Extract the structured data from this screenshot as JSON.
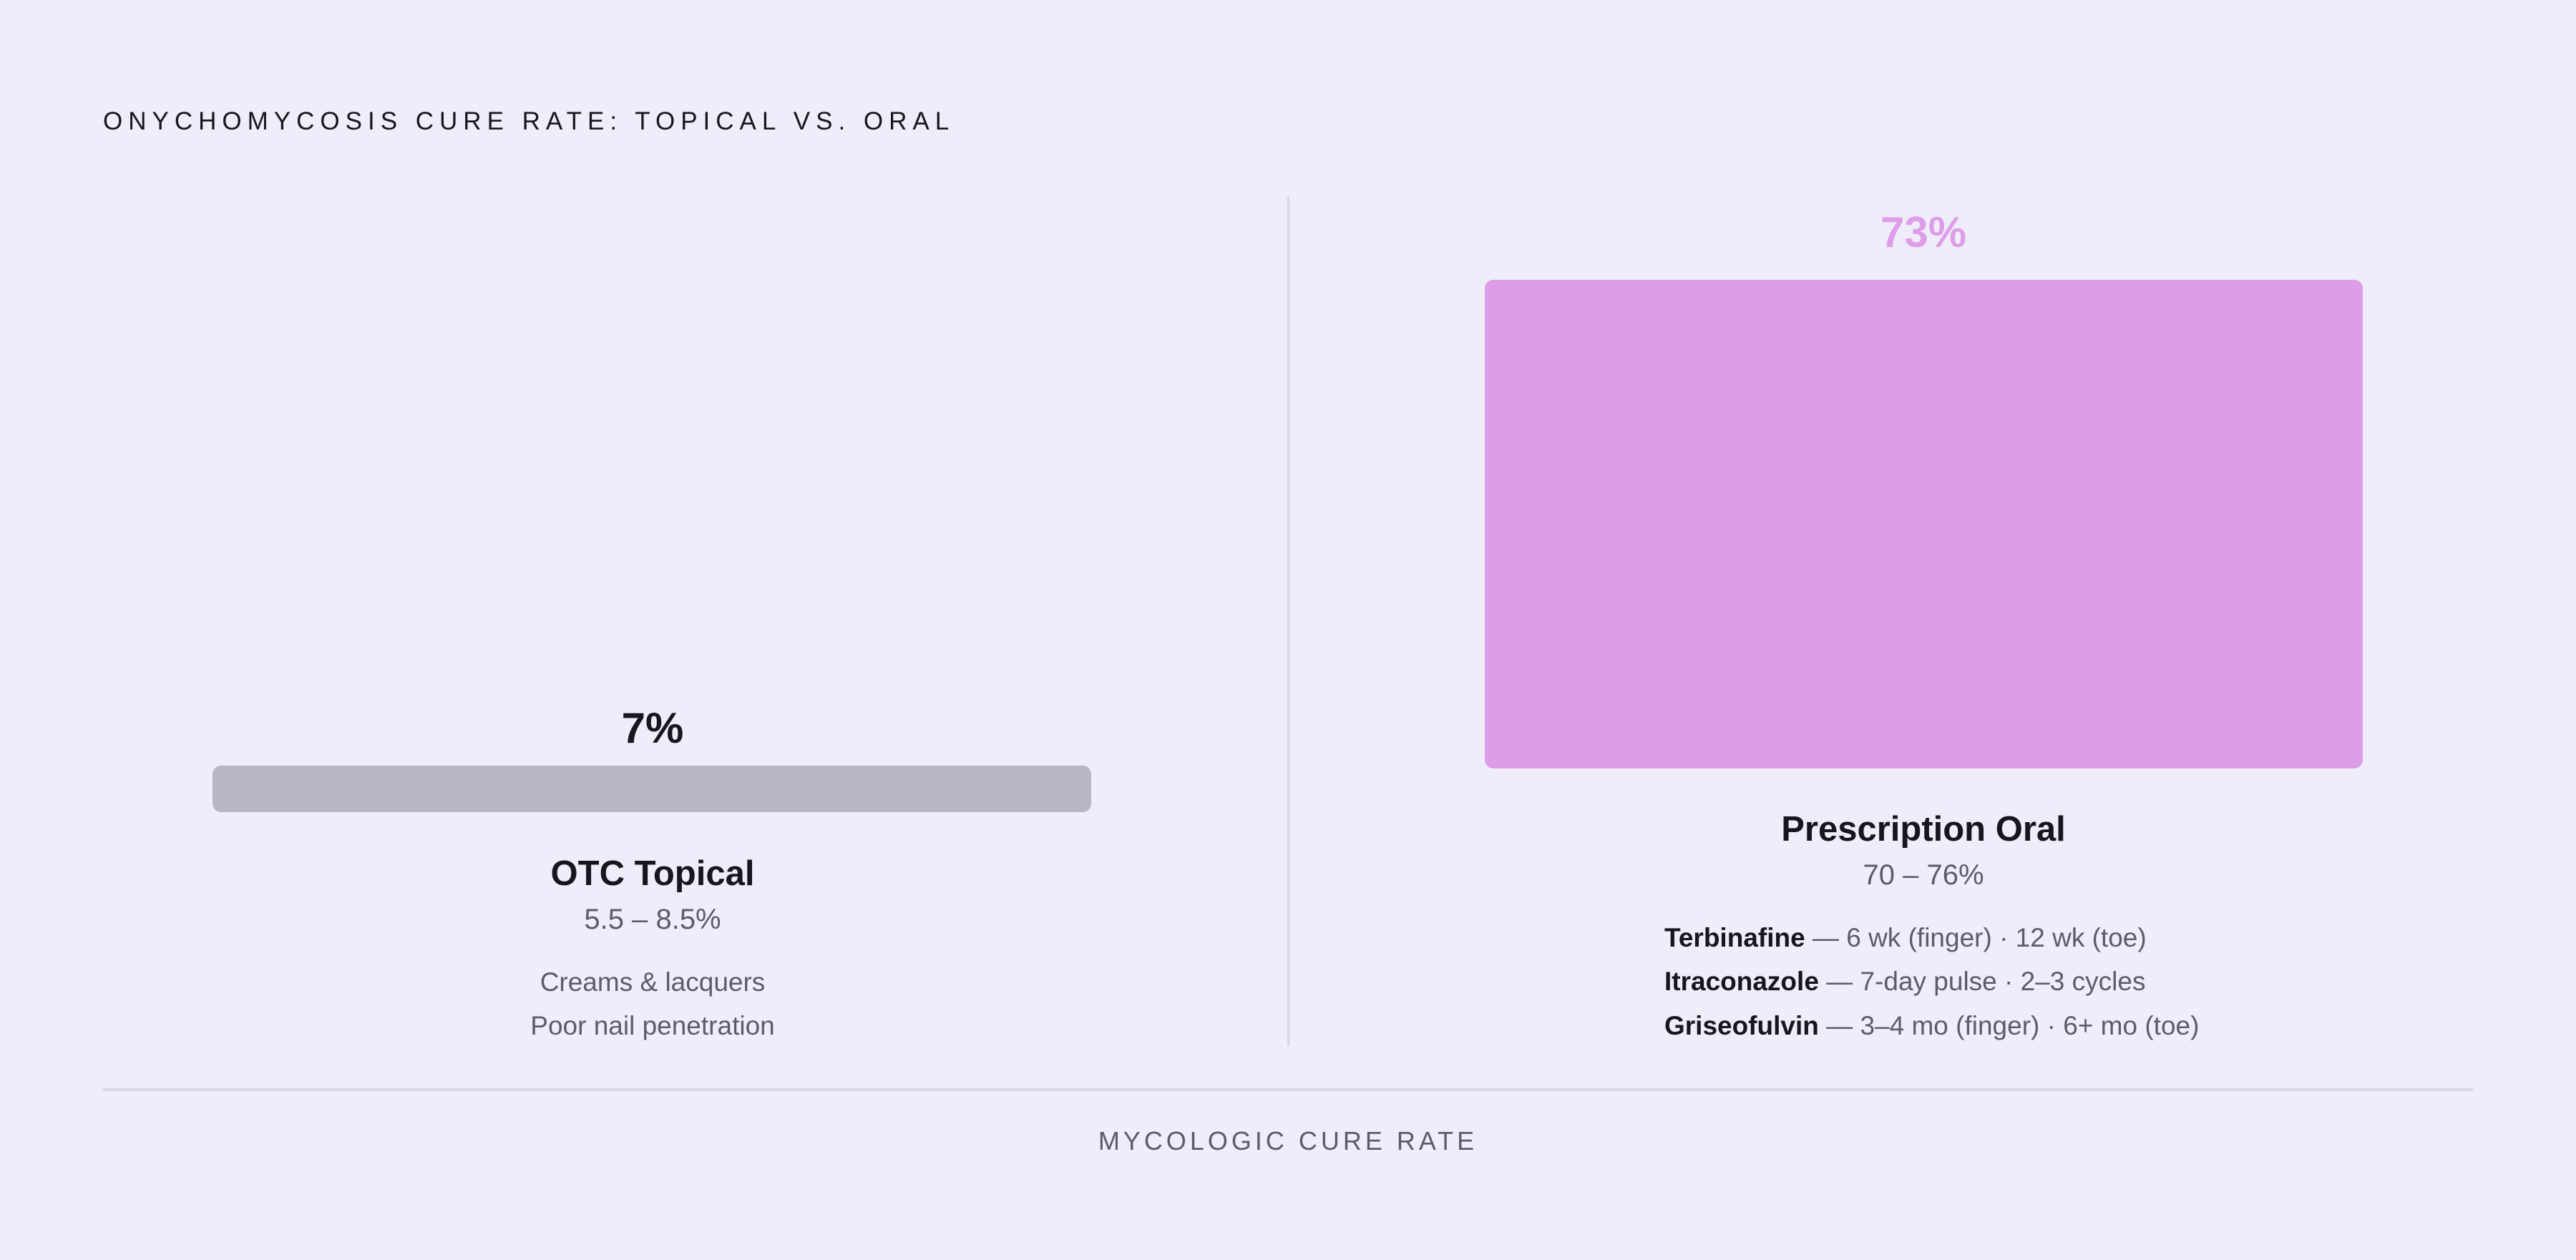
{
  "chart_data": {
    "type": "bar",
    "title": "ONYCHOMYCOSIS CURE RATE: TOPICAL VS. ORAL",
    "xlabel": "MYCOLOGIC CURE RATE",
    "ylabel": "",
    "ylim": [
      0,
      73
    ],
    "categories": [
      "OTC Topical",
      "Prescription Oral"
    ],
    "values": [
      7,
      73
    ],
    "value_labels": [
      "7%",
      "73%"
    ],
    "ranges": [
      "5.5 – 8.5%",
      "70 – 76%"
    ],
    "colors": [
      "#b8b6c5",
      "#dd9de8"
    ],
    "value_label_colors": [
      "#17151f",
      "#dd9de8"
    ],
    "annotations": {
      "otc": [
        "Creams & lacquers",
        "Poor nail penetration"
      ],
      "oral": [
        {
          "drug": "Terbinafine",
          "detail": " — 6 wk (finger) · 12 wk (toe)"
        },
        {
          "drug": "Itraconazole",
          "detail": " — 7-day pulse · 2–3 cycles"
        },
        {
          "drug": "Griseofulvin",
          "detail": " — 3–4 mo (finger) · 6+ mo (toe)"
        }
      ]
    }
  }
}
